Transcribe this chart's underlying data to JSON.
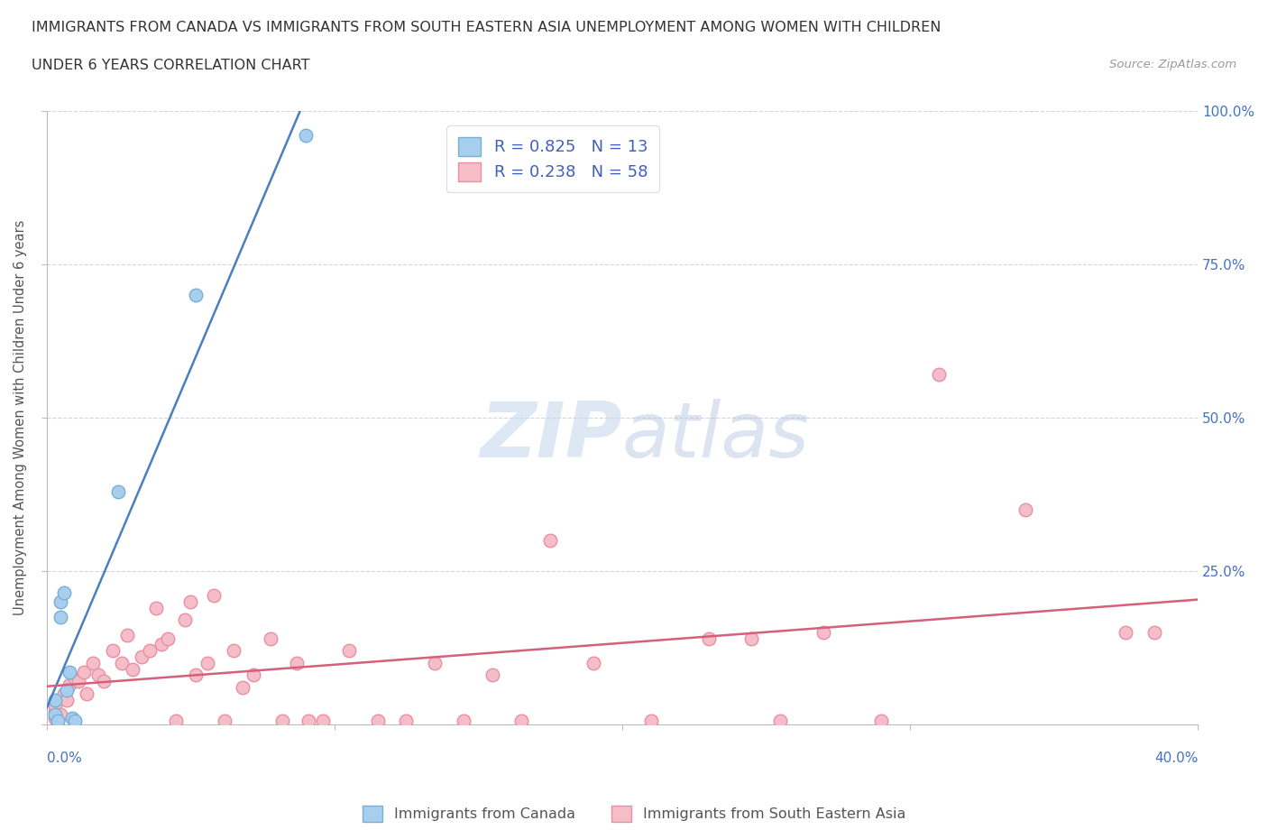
{
  "title_line1": "IMMIGRANTS FROM CANADA VS IMMIGRANTS FROM SOUTH EASTERN ASIA UNEMPLOYMENT AMONG WOMEN WITH CHILDREN",
  "title_line2": "UNDER 6 YEARS CORRELATION CHART",
  "source": "Source: ZipAtlas.com",
  "ylabel": "Unemployment Among Women with Children Under 6 years",
  "canada_color": "#A8CEED",
  "canada_edge_color": "#7AAFD4",
  "sea_color": "#F5BDC8",
  "sea_edge_color": "#E88FA4",
  "canada_line_color": "#4A7FC0",
  "sea_line_color": "#D4607A",
  "canada_R": 0.825,
  "canada_N": 13,
  "sea_R": 0.238,
  "sea_N": 58,
  "legend_label_canada": "Immigrants from Canada",
  "legend_label_sea": "Immigrants from South Eastern Asia",
  "watermark_zip": "ZIP",
  "watermark_atlas": "atlas",
  "canada_points": [
    [
      0.003,
      0.015
    ],
    [
      0.003,
      0.04
    ],
    [
      0.004,
      0.005
    ],
    [
      0.005,
      0.175
    ],
    [
      0.005,
      0.2
    ],
    [
      0.006,
      0.215
    ],
    [
      0.007,
      0.055
    ],
    [
      0.008,
      0.085
    ],
    [
      0.009,
      0.01
    ],
    [
      0.01,
      0.005
    ],
    [
      0.025,
      0.38
    ],
    [
      0.052,
      0.7
    ],
    [
      0.09,
      0.96
    ]
  ],
  "sea_points": [
    [
      0.003,
      0.01
    ],
    [
      0.003,
      0.02
    ],
    [
      0.003,
      0.03
    ],
    [
      0.004,
      0.005
    ],
    [
      0.005,
      0.015
    ],
    [
      0.006,
      0.05
    ],
    [
      0.007,
      0.04
    ],
    [
      0.008,
      0.065
    ],
    [
      0.01,
      0.075
    ],
    [
      0.011,
      0.07
    ],
    [
      0.013,
      0.085
    ],
    [
      0.014,
      0.05
    ],
    [
      0.016,
      0.1
    ],
    [
      0.018,
      0.08
    ],
    [
      0.02,
      0.07
    ],
    [
      0.023,
      0.12
    ],
    [
      0.026,
      0.1
    ],
    [
      0.028,
      0.145
    ],
    [
      0.03,
      0.09
    ],
    [
      0.033,
      0.11
    ],
    [
      0.036,
      0.12
    ],
    [
      0.038,
      0.19
    ],
    [
      0.04,
      0.13
    ],
    [
      0.042,
      0.14
    ],
    [
      0.045,
      0.005
    ],
    [
      0.048,
      0.17
    ],
    [
      0.05,
      0.2
    ],
    [
      0.052,
      0.08
    ],
    [
      0.056,
      0.1
    ],
    [
      0.058,
      0.21
    ],
    [
      0.062,
      0.005
    ],
    [
      0.065,
      0.12
    ],
    [
      0.068,
      0.06
    ],
    [
      0.072,
      0.08
    ],
    [
      0.078,
      0.14
    ],
    [
      0.082,
      0.005
    ],
    [
      0.087,
      0.1
    ],
    [
      0.091,
      0.005
    ],
    [
      0.096,
      0.005
    ],
    [
      0.105,
      0.12
    ],
    [
      0.115,
      0.005
    ],
    [
      0.125,
      0.005
    ],
    [
      0.135,
      0.1
    ],
    [
      0.145,
      0.005
    ],
    [
      0.155,
      0.08
    ],
    [
      0.165,
      0.005
    ],
    [
      0.175,
      0.3
    ],
    [
      0.19,
      0.1
    ],
    [
      0.21,
      0.005
    ],
    [
      0.23,
      0.14
    ],
    [
      0.245,
      0.14
    ],
    [
      0.255,
      0.005
    ],
    [
      0.27,
      0.15
    ],
    [
      0.29,
      0.005
    ],
    [
      0.31,
      0.57
    ],
    [
      0.34,
      0.35
    ],
    [
      0.375,
      0.15
    ],
    [
      0.385,
      0.15
    ]
  ],
  "xlim": [
    0.0,
    0.4
  ],
  "ylim": [
    0.0,
    1.0
  ],
  "canada_trend": [
    0.0,
    0.4
  ],
  "sea_trend": [
    0.0,
    0.4
  ]
}
